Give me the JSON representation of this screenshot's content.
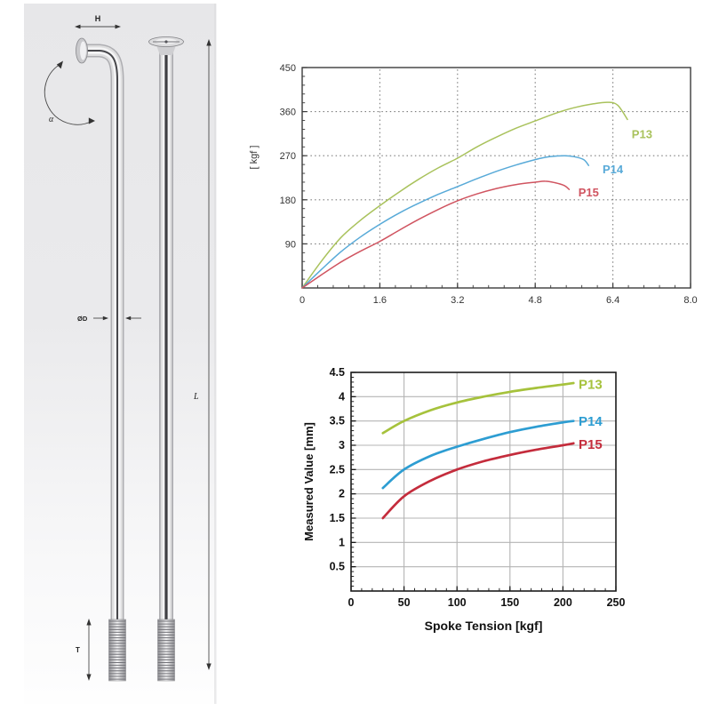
{
  "page": {
    "background": "#ffffff"
  },
  "left_diagram": {
    "dim_h_label": "H",
    "angle_label": "α",
    "diameter_label": "ØD",
    "length_label": "L",
    "thread_label": "T"
  },
  "chart_data": [
    {
      "id": "top",
      "type": "line",
      "title": "",
      "xlabel": "",
      "ylabel": "[ kgf ]",
      "xlim": [
        0,
        8.0
      ],
      "ylim": [
        0,
        450
      ],
      "xticks": [
        0,
        1.6,
        3.2,
        4.8,
        6.4,
        8.0
      ],
      "xtick_labels": [
        "0",
        "1.6",
        "3.2",
        "4.8",
        "6.4",
        "8.0"
      ],
      "yticks": [
        90,
        180,
        270,
        360,
        450
      ],
      "ytick_labels": [
        "90",
        "180",
        "270",
        "360",
        "450"
      ],
      "grid": "dashed",
      "legend_position": "on-curve",
      "series": [
        {
          "name": "P13",
          "color": "#a9c25c",
          "label_pos": [
            7.0,
            315
          ],
          "points": [
            [
              0,
              0
            ],
            [
              0.4,
              55
            ],
            [
              0.8,
              103
            ],
            [
              1.2,
              138
            ],
            [
              1.6,
              168
            ],
            [
              2.0,
              196
            ],
            [
              2.4,
              222
            ],
            [
              2.8,
              245
            ],
            [
              3.2,
              265
            ],
            [
              3.6,
              288
            ],
            [
              4.0,
              308
            ],
            [
              4.4,
              326
            ],
            [
              4.8,
              341
            ],
            [
              5.2,
              356
            ],
            [
              5.6,
              368
            ],
            [
              6.0,
              376
            ],
            [
              6.3,
              379
            ],
            [
              6.5,
              373
            ],
            [
              6.7,
              344
            ]
          ]
        },
        {
          "name": "P14",
          "color": "#58aad8",
          "label_pos": [
            6.4,
            243
          ],
          "points": [
            [
              0,
              0
            ],
            [
              0.4,
              38
            ],
            [
              0.8,
              74
            ],
            [
              1.2,
              104
            ],
            [
              1.6,
              130
            ],
            [
              2.0,
              153
            ],
            [
              2.4,
              173
            ],
            [
              2.8,
              191
            ],
            [
              3.2,
              207
            ],
            [
              3.6,
              223
            ],
            [
              4.0,
              238
            ],
            [
              4.4,
              251
            ],
            [
              4.8,
              262
            ],
            [
              5.1,
              268
            ],
            [
              5.4,
              270
            ],
            [
              5.6,
              268
            ],
            [
              5.8,
              262
            ],
            [
              5.9,
              250
            ]
          ]
        },
        {
          "name": "P15",
          "color": "#d05460",
          "label_pos": [
            5.9,
            196
          ],
          "points": [
            [
              0,
              0
            ],
            [
              0.4,
              27
            ],
            [
              0.8,
              53
            ],
            [
              1.2,
              75
            ],
            [
              1.6,
              95
            ],
            [
              2.0,
              118
            ],
            [
              2.4,
              140
            ],
            [
              2.8,
              160
            ],
            [
              3.2,
              178
            ],
            [
              3.6,
              192
            ],
            [
              4.0,
              203
            ],
            [
              4.4,
              211
            ],
            [
              4.8,
              216
            ],
            [
              5.0,
              218
            ],
            [
              5.2,
              215
            ],
            [
              5.4,
              209
            ],
            [
              5.5,
              201
            ]
          ]
        }
      ]
    },
    {
      "id": "bottom",
      "type": "line",
      "title": "",
      "xlabel": "Spoke Tension [kgf]",
      "ylabel": "Measured Value [mm]",
      "xlim": [
        0,
        250
      ],
      "ylim": [
        0,
        4.5
      ],
      "xticks": [
        0,
        50,
        100,
        150,
        200,
        250
      ],
      "xtick_labels": [
        "0",
        "50",
        "100",
        "150",
        "200",
        "250"
      ],
      "yticks": [
        0.5,
        1,
        1.5,
        2,
        2.5,
        3,
        3.5,
        4,
        4.5
      ],
      "ytick_labels": [
        "0.5",
        "1",
        "1.5",
        "2",
        "2.5",
        "3",
        "3.5",
        "4",
        "4.5"
      ],
      "grid": "solid",
      "legend_position": "right-of-curves",
      "series": [
        {
          "name": "P13",
          "color": "#a6c23c",
          "label_pos": [
            226,
            4.25
          ],
          "points": [
            [
              30,
              3.25
            ],
            [
              50,
              3.5
            ],
            [
              75,
              3.72
            ],
            [
              100,
              3.88
            ],
            [
              125,
              4.0
            ],
            [
              150,
              4.1
            ],
            [
              175,
              4.18
            ],
            [
              200,
              4.25
            ],
            [
              210,
              4.28
            ]
          ]
        },
        {
          "name": "P14",
          "color": "#2d9dd2",
          "label_pos": [
            226,
            3.49
          ],
          "points": [
            [
              30,
              2.12
            ],
            [
              50,
              2.5
            ],
            [
              75,
              2.78
            ],
            [
              100,
              2.97
            ],
            [
              125,
              3.13
            ],
            [
              150,
              3.27
            ],
            [
              175,
              3.38
            ],
            [
              200,
              3.47
            ],
            [
              210,
              3.5
            ]
          ]
        },
        {
          "name": "P15",
          "color": "#c42c3c",
          "label_pos": [
            226,
            3.02
          ],
          "points": [
            [
              30,
              1.5
            ],
            [
              50,
              1.95
            ],
            [
              75,
              2.27
            ],
            [
              100,
              2.5
            ],
            [
              125,
              2.67
            ],
            [
              150,
              2.8
            ],
            [
              175,
              2.91
            ],
            [
              200,
              3.0
            ],
            [
              210,
              3.04
            ]
          ]
        }
      ]
    }
  ]
}
